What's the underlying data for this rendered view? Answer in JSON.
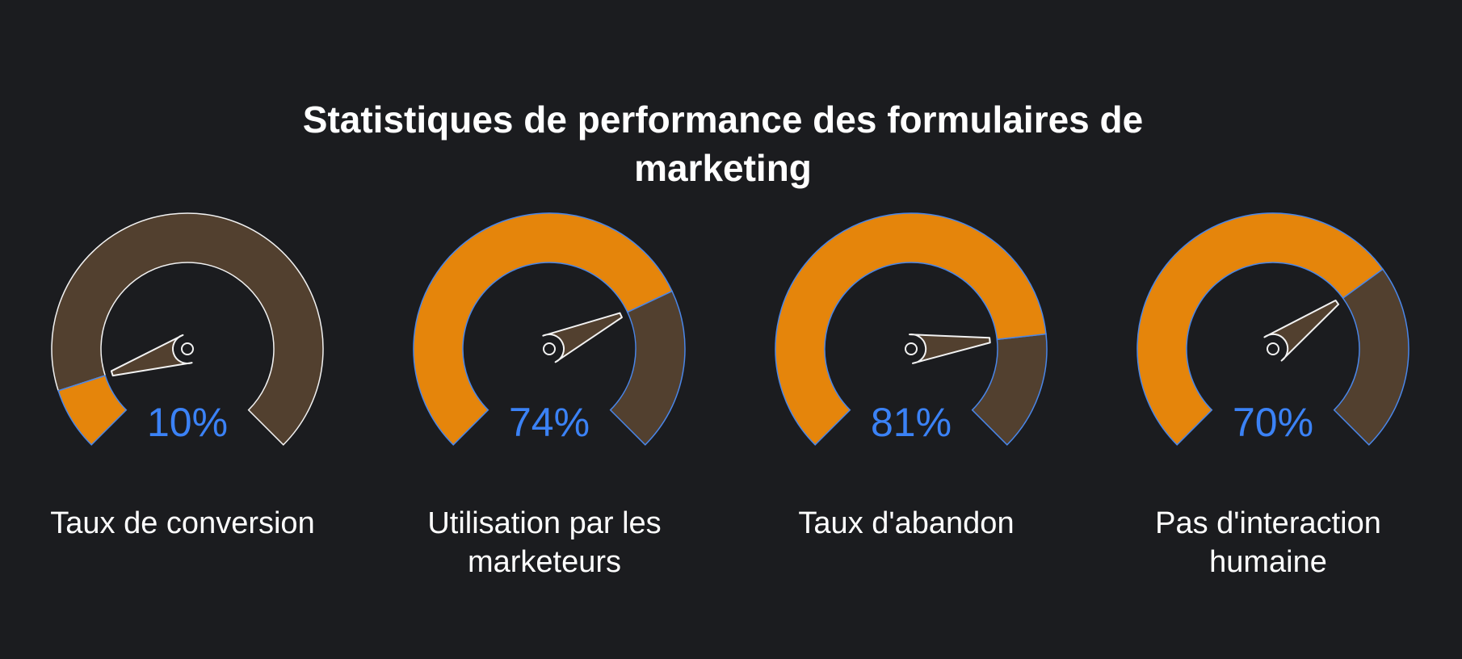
{
  "chart_data": {
    "type": "gauge",
    "title": "Statistiques de performance des formulaires de marketing",
    "min": 0,
    "max": 100,
    "unit": "%",
    "gauges": [
      {
        "label_lines": [
          "Taux de conversion"
        ],
        "value": 10,
        "value_text": "10%"
      },
      {
        "label_lines": [
          "Utilisation par les",
          "marketeurs"
        ],
        "value": 74,
        "value_text": "74%"
      },
      {
        "label_lines": [
          "Taux d'abandon"
        ],
        "value": 81,
        "value_text": "81%"
      },
      {
        "label_lines": [
          "Pas d'interaction",
          "humaine"
        ],
        "value": 70,
        "value_text": "70%"
      }
    ]
  },
  "colors": {
    "background": "#1b1c1f",
    "filled": "#e5850b",
    "remaining": "#52402f",
    "value_text": "#3b82f6",
    "text": "#ffffff",
    "needle": "#52402f",
    "outline_light": "#f2f2f2",
    "outline_blue": "#4a86e8"
  }
}
